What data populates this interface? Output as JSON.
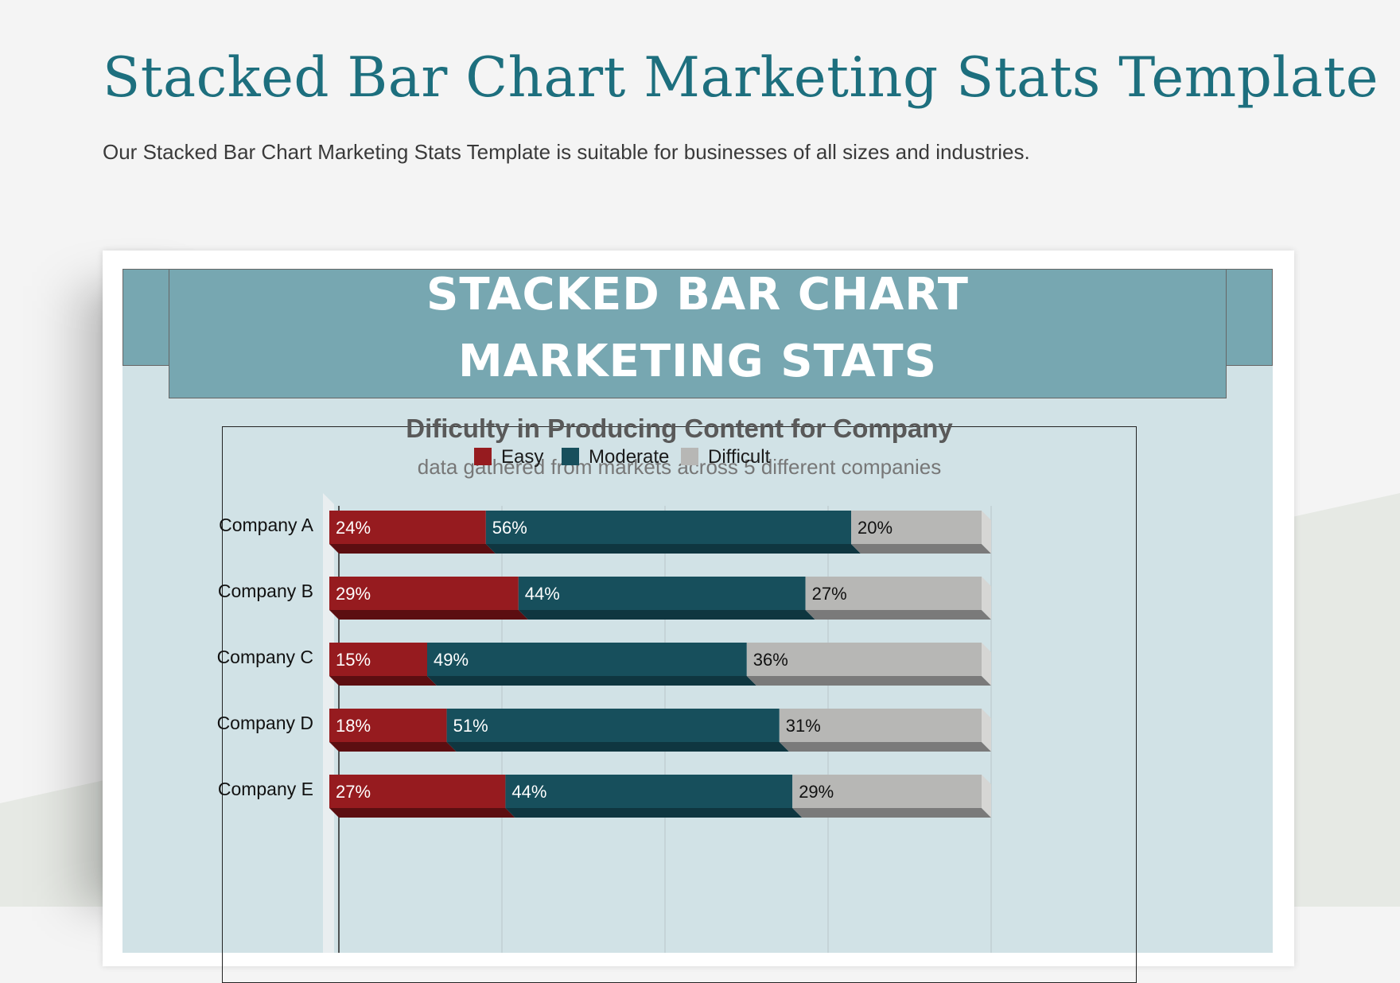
{
  "page": {
    "title": "Stacked Bar Chart Marketing Stats Template",
    "subtitle": "Our Stacked Bar Chart Marketing Stats Template is suitable for businesses of all sizes and industries."
  },
  "banner": {
    "line1": "STACKED BAR CHART",
    "line2": "MARKETING STATS"
  },
  "colors": {
    "easy": "#961b1f",
    "moderate": "#174f5c",
    "difficult": "#b7b7b5",
    "title": "#1d6f7e",
    "banner": "#77a7b1"
  },
  "chart_data": {
    "type": "bar",
    "orientation": "horizontal",
    "stacked": true,
    "title": "Dificulty in Producing Content for Company",
    "subtitle": "data gathered from markets across 5 different companies",
    "legend_position": "top",
    "categories": [
      "Company A",
      "Company B",
      "Company C",
      "Company D",
      "Company E"
    ],
    "series": [
      {
        "name": "Easy",
        "values": [
          24,
          29,
          15,
          18,
          27
        ],
        "labels": [
          "24%",
          "29%",
          "15%",
          "18%",
          "27%"
        ]
      },
      {
        "name": "Moderate",
        "values": [
          56,
          44,
          49,
          51,
          44
        ],
        "labels": [
          "56%",
          "44%",
          "49%",
          "51%",
          "44%"
        ]
      },
      {
        "name": "Difficult",
        "values": [
          20,
          27,
          36,
          31,
          29
        ],
        "labels": [
          "20%",
          "27%",
          "36%",
          "31%",
          "29%"
        ]
      }
    ],
    "xlim": [
      0,
      100
    ],
    "grid": true
  }
}
